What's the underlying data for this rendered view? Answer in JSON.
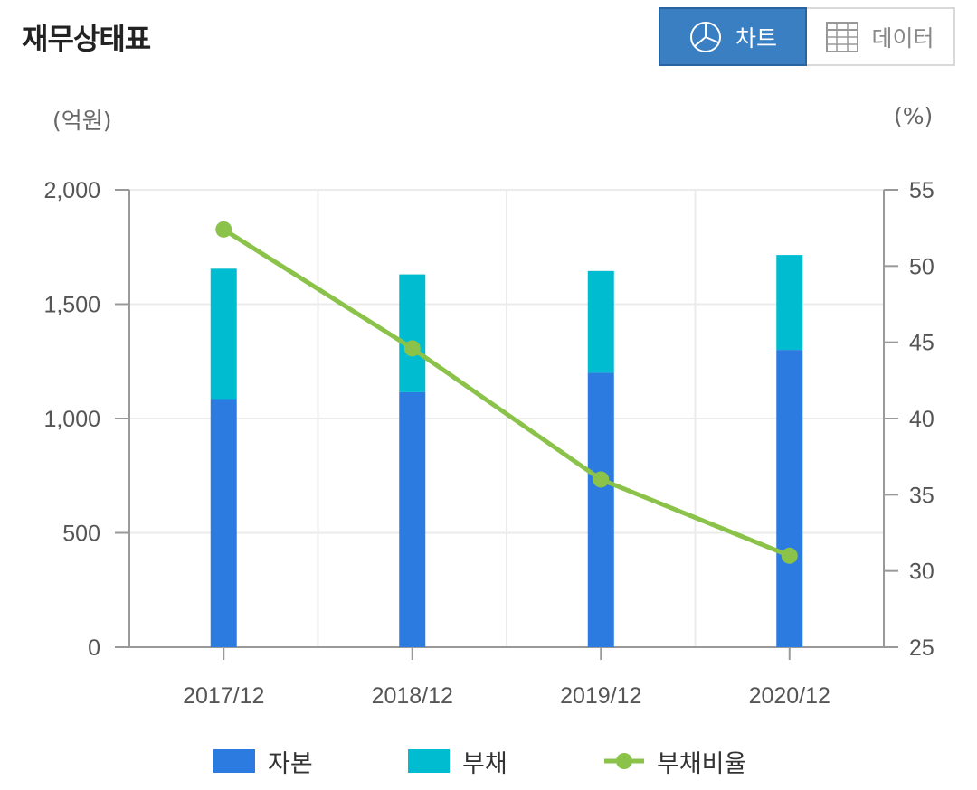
{
  "header": {
    "title": "재무상태표",
    "chart_button_label": "차트",
    "data_button_label": "데이터"
  },
  "chart_data": {
    "type": "bar",
    "stacked": true,
    "categories": [
      "2017/12",
      "2018/12",
      "2019/12",
      "2020/12"
    ],
    "series": [
      {
        "name": "자본",
        "type": "bar",
        "color": "#2b7be0",
        "values": [
          1085,
          1115,
          1200,
          1300
        ]
      },
      {
        "name": "부채",
        "type": "bar",
        "color": "#00bcd1",
        "values": [
          570,
          515,
          445,
          415
        ]
      },
      {
        "name": "부채비율",
        "type": "line",
        "axis": "right",
        "color": "#8bc34a",
        "values": [
          52.4,
          44.6,
          36.0,
          31.0
        ]
      }
    ],
    "y_left": {
      "unit": "(억원)",
      "min": 0,
      "max": 2000,
      "ticks": [
        0,
        500,
        1000,
        1500,
        2000
      ],
      "tick_labels": [
        "0",
        "500",
        "1,000",
        "1,500",
        "2,000"
      ]
    },
    "y_right": {
      "unit": "(%)",
      "min": 25,
      "max": 55,
      "ticks": [
        25,
        30,
        35,
        40,
        45,
        50,
        55
      ],
      "tick_labels": [
        "25",
        "30",
        "35",
        "40",
        "45",
        "50",
        "55"
      ]
    },
    "grid": true,
    "legend_position": "bottom"
  }
}
